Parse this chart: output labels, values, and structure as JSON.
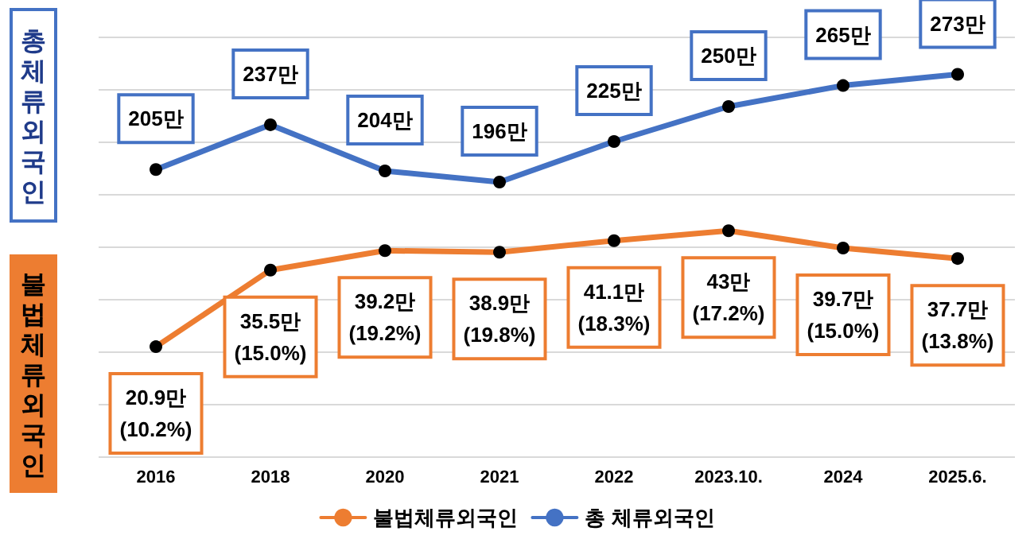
{
  "chart_data": {
    "type": "line",
    "categories": [
      "2016",
      "2018",
      "2020",
      "2021",
      "2022",
      "2023.10.",
      "2024",
      "2025.6."
    ],
    "series": [
      {
        "name": "불법체류외국인",
        "color": "#ed7d31",
        "values": [
          20.9,
          35.5,
          39.2,
          38.9,
          41.1,
          43,
          39.7,
          37.7
        ],
        "value_labels": [
          "20.9만\n(10.2%)",
          "35.5만\n(15.0%)",
          "39.2만\n(19.2%)",
          "38.9만\n(19.8%)",
          "41.1만\n(18.3%)",
          "43만\n(17.2%)",
          "39.7만\n(15.0%)",
          "37.7만\n(13.8%)"
        ]
      },
      {
        "name": "총 체류외국인",
        "color": "#4472c4",
        "axis": "y2",
        "values": [
          205,
          237,
          204,
          196,
          225,
          250,
          265,
          273
        ],
        "value_labels": [
          "205만",
          "237만",
          "204만",
          "196만",
          "225만",
          "250만",
          "265만",
          "273만"
        ]
      }
    ],
    "annotations": [
      "총체류외국인",
      "불법체류외국인"
    ],
    "ylim": [
      0,
      80
    ],
    "yticks": [
      {
        "value": 0,
        "label": null
      },
      {
        "value": 10,
        "label": null
      },
      {
        "value": 20,
        "label": null
      },
      {
        "value": 30,
        "label": null
      },
      {
        "value": 40,
        "label": null
      },
      {
        "value": 50,
        "label": null
      },
      {
        "value": 60,
        "label": null
      },
      {
        "value": 70,
        "label": null
      },
      {
        "value": 80,
        "label": null
      }
    ],
    "y2lim": [
      0,
      300
    ],
    "tick_labels": "x",
    "grid": "y",
    "legend": "bottom",
    "marker": "circle",
    "line_style": "solid"
  }
}
